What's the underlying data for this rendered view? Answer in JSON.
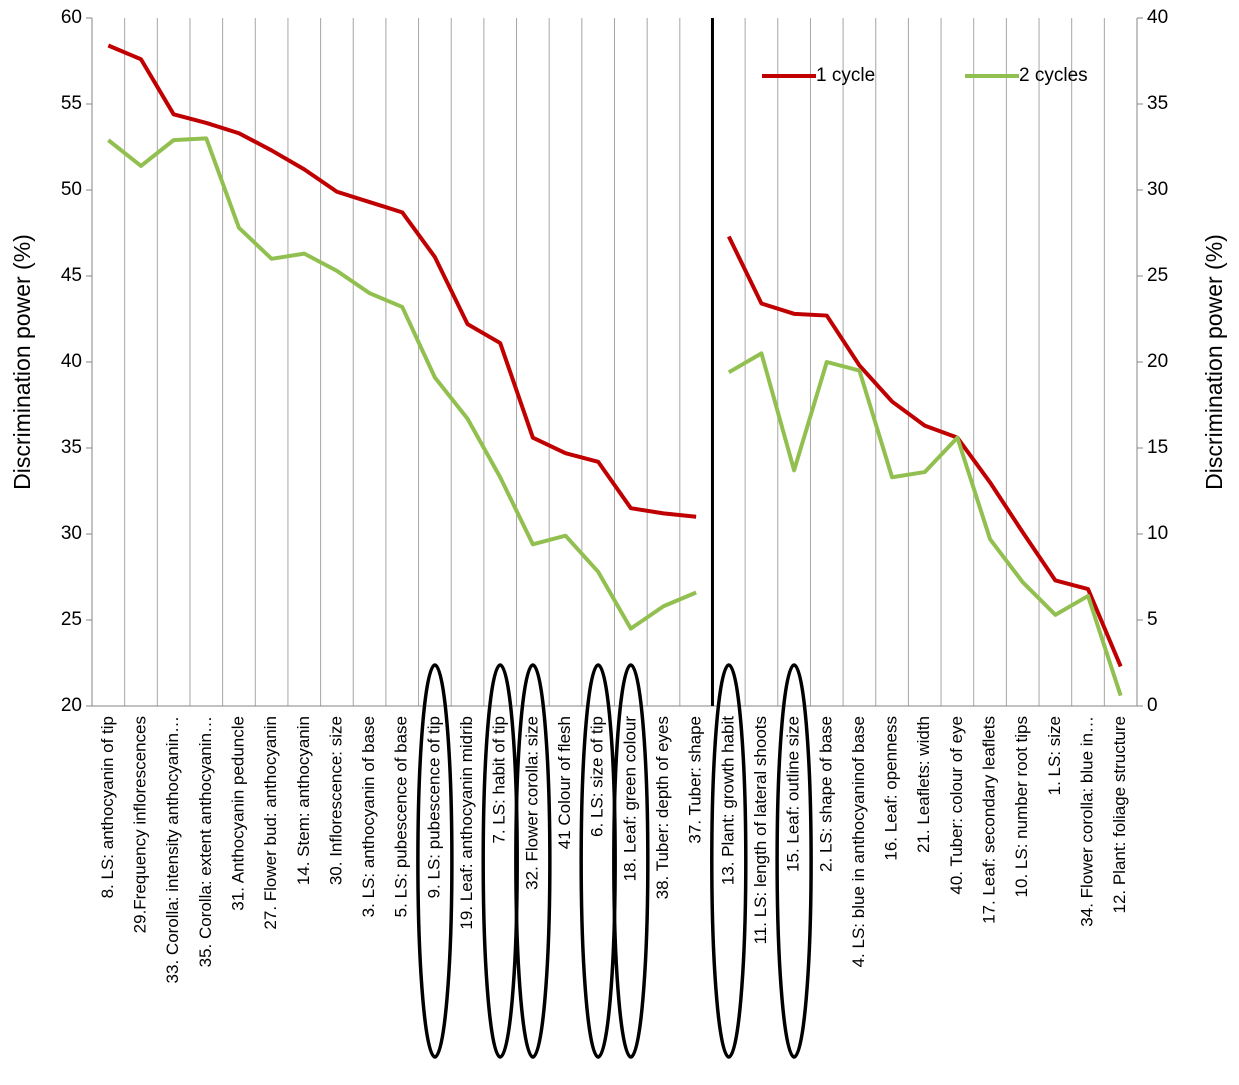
{
  "chart_data": {
    "type": "line",
    "y_label": "Discrimination power (%)",
    "y2_label": "Discrimination power (%)",
    "categories": [
      "8. LS: anthocyanin of tip",
      "29.Frequency inflorescences",
      "33. Corolla: intensity anthocyanin…",
      "35. Corolla: extent anthocyanin…",
      "31. Anthocyanin peduncle",
      "27. Flower bud: anthocyanin",
      "14. Stem: anthocyanin",
      "30. Inflorescence: size",
      "3. LS: anthocyanin of base",
      "5. LS: pubescence of base",
      "9. LS: pubescence of tip",
      "19. Leaf: anthocyanin midrib",
      "7. LS: habit of tip",
      "32. Flower corolla: size",
      "41 Colour of flesh",
      "6. LS: size of tip",
      "18. Leaf: green colour",
      "38. Tuber: depth of eyes",
      "37. Tuber: shape",
      "13. Plant: growth habit",
      "11. LS: length of lateral shoots",
      "15. Leaf: outline size",
      "2. LS: shape of base",
      "4. LS: blue in anthocyaninof base",
      "16. Leaf: openness",
      "21. Leaflets: width",
      "40. Tuber: colour of eye",
      "17. Leaf: secondary leaflets",
      "10. LS: number root tips",
      "1. LS: size",
      "34. Flower corolla: blue in…",
      "12. Plant: foliage structure"
    ],
    "series": [
      {
        "name": "1 cycle",
        "color": "#c00000",
        "values": [
          58.4,
          57.6,
          54.4,
          53.9,
          53.3,
          52.3,
          51.2,
          49.9,
          49.3,
          48.7,
          46.1,
          42.2,
          41.1,
          35.6,
          34.7,
          34.2,
          31.5,
          31.2,
          31.0,
          null,
          null,
          null,
          null,
          null,
          null,
          null,
          null,
          null,
          null,
          null,
          null,
          null
        ],
        "values_y2": [
          null,
          null,
          null,
          null,
          null,
          null,
          null,
          null,
          null,
          null,
          null,
          null,
          null,
          null,
          null,
          null,
          null,
          null,
          null,
          27.3,
          23.4,
          22.8,
          22.7,
          19.8,
          17.7,
          16.3,
          15.6,
          13.0,
          10.1,
          7.3,
          6.8,
          2.3
        ]
      },
      {
        "name": "2 cycles",
        "color": "#92c050",
        "values": [
          52.9,
          51.4,
          52.9,
          53.0,
          47.8,
          46.0,
          46.3,
          45.3,
          44.0,
          43.2,
          39.1,
          36.7,
          33.3,
          29.4,
          29.9,
          27.8,
          24.5,
          25.8,
          26.6,
          null,
          null,
          null,
          null,
          null,
          null,
          null,
          null,
          null,
          null,
          null,
          null,
          null
        ],
        "values_y2": [
          null,
          null,
          null,
          null,
          null,
          null,
          null,
          null,
          null,
          null,
          null,
          null,
          null,
          null,
          null,
          null,
          null,
          null,
          null,
          19.4,
          20.5,
          13.7,
          20.0,
          19.5,
          13.3,
          13.6,
          15.6,
          9.7,
          7.2,
          5.3,
          6.4,
          0.6
        ]
      }
    ],
    "ylim": [
      20,
      60
    ],
    "yticks": [
      20,
      25,
      30,
      35,
      40,
      45,
      50,
      55,
      60
    ],
    "y2lim": [
      0,
      40
    ],
    "y2ticks": [
      0,
      5,
      10,
      15,
      20,
      25,
      30,
      35,
      40
    ],
    "grid": "vertical",
    "legend": "top-right",
    "highlighted_categories": [
      10,
      12,
      13,
      15,
      16,
      19,
      21
    ]
  }
}
